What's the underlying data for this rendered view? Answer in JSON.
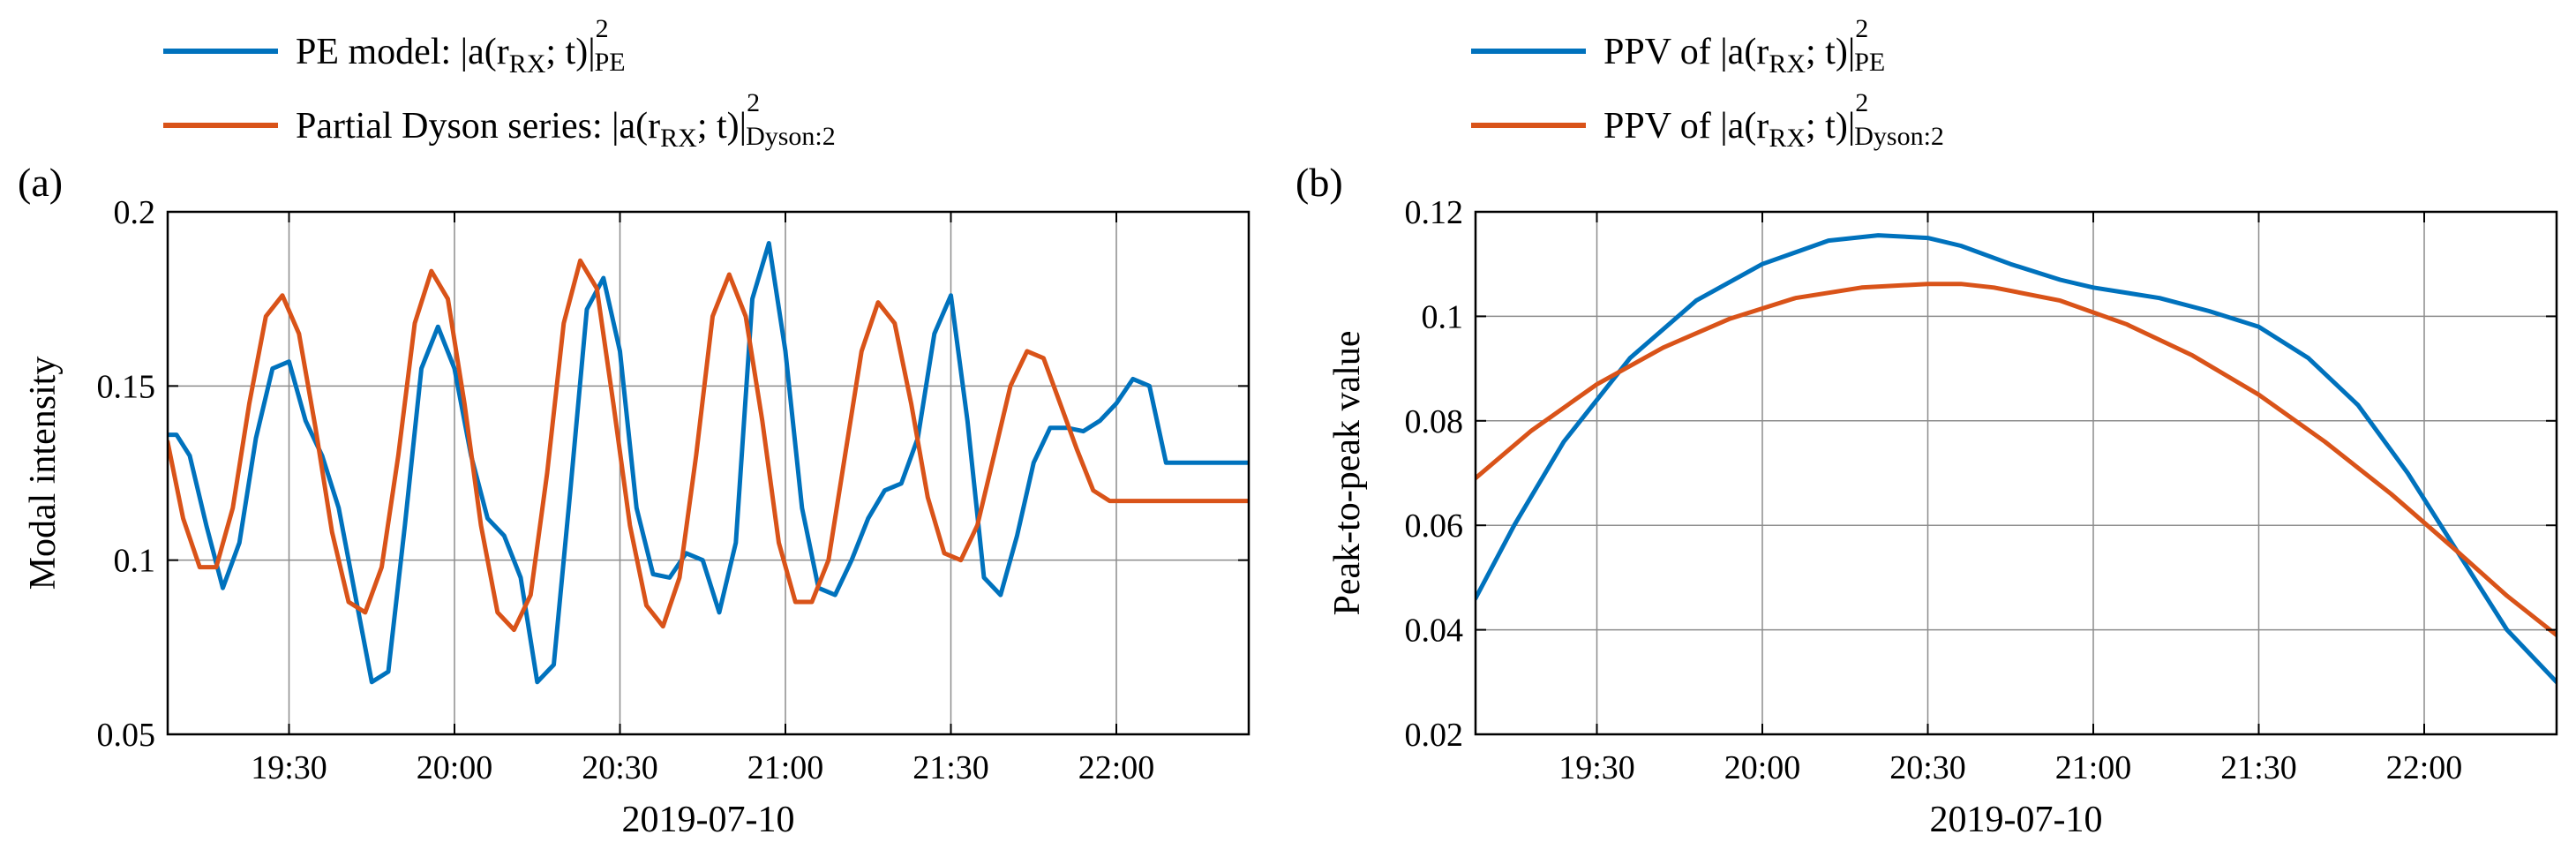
{
  "chart_data": [
    {
      "type": "line",
      "panel_label": "(a)",
      "xlabel": "2019-07-10",
      "ylabel": "Modal intensity",
      "xlim": [
        19.1333,
        22.4
      ],
      "ylim": [
        0.05,
        0.2
      ],
      "grid": true,
      "legend_position": "top-left",
      "x_ticks": [
        19.5,
        20.0,
        20.5,
        21.0,
        21.5,
        22.0
      ],
      "x_tick_labels": [
        "19:30",
        "20:00",
        "20:30",
        "21:00",
        "21:30",
        "22:00"
      ],
      "y_ticks": [
        0.05,
        0.1,
        0.15,
        0.2
      ],
      "y_tick_labels": [
        "0.05",
        "0.1",
        "0.15",
        "0.2"
      ],
      "series": [
        {
          "name": "PE model",
          "legend_main": "PE model: |a(r",
          "legend_sub": "RX",
          "legend_mid": "; t)|",
          "legend_sup": "2",
          "legend_subscript": "PE",
          "color": "#0072BD",
          "x": [
            19.133,
            19.16,
            19.2,
            19.25,
            19.3,
            19.35,
            19.4,
            19.45,
            19.5,
            19.55,
            19.6,
            19.65,
            19.7,
            19.75,
            19.8,
            19.85,
            19.9,
            19.95,
            20.0,
            20.05,
            20.1,
            20.15,
            20.2,
            20.25,
            20.3,
            20.35,
            20.4,
            20.45,
            20.5,
            20.55,
            20.6,
            20.65,
            20.7,
            20.75,
            20.8,
            20.85,
            20.9,
            20.95,
            21.0,
            21.05,
            21.1,
            21.15,
            21.2,
            21.25,
            21.3,
            21.35,
            21.4,
            21.45,
            21.5,
            21.55,
            21.6,
            21.65,
            21.7,
            21.75,
            21.8,
            21.85,
            21.9,
            21.95,
            22.0,
            22.05,
            22.1,
            22.15,
            22.2,
            22.25,
            22.3,
            22.35,
            22.4
          ],
          "values": [
            0.136,
            0.136,
            0.13,
            0.11,
            0.092,
            0.105,
            0.135,
            0.155,
            0.157,
            0.14,
            0.13,
            0.115,
            0.09,
            0.065,
            0.068,
            0.11,
            0.155,
            0.167,
            0.155,
            0.13,
            0.112,
            0.107,
            0.095,
            0.065,
            0.07,
            0.12,
            0.172,
            0.181,
            0.16,
            0.115,
            0.096,
            0.095,
            0.102,
            0.1,
            0.085,
            0.105,
            0.175,
            0.191,
            0.16,
            0.115,
            0.092,
            0.09,
            0.1,
            0.112,
            0.12,
            0.122,
            0.135,
            0.165,
            0.176,
            0.14,
            0.095,
            0.09,
            0.107,
            0.128,
            0.138,
            0.138,
            0.137,
            0.14,
            0.145,
            0.152,
            0.15,
            0.128,
            0.128,
            0.128,
            0.128,
            0.128,
            0.128
          ]
        },
        {
          "name": "Partial Dyson series",
          "legend_main": "Partial Dyson series: |a(r",
          "legend_sub": "RX",
          "legend_mid": "; t)|",
          "legend_sup": "2",
          "legend_subscript": "Dyson:2",
          "color": "#D95319",
          "x": [
            19.133,
            19.18,
            19.23,
            19.28,
            19.33,
            19.38,
            19.43,
            19.48,
            19.53,
            19.58,
            19.63,
            19.68,
            19.73,
            19.78,
            19.83,
            19.88,
            19.93,
            19.98,
            20.03,
            20.08,
            20.13,
            20.18,
            20.23,
            20.28,
            20.33,
            20.38,
            20.43,
            20.48,
            20.53,
            20.58,
            20.63,
            20.68,
            20.73,
            20.78,
            20.83,
            20.88,
            20.93,
            20.98,
            21.03,
            21.08,
            21.13,
            21.18,
            21.23,
            21.28,
            21.33,
            21.38,
            21.43,
            21.48,
            21.53,
            21.58,
            21.63,
            21.68,
            21.73,
            21.78,
            21.83,
            21.88,
            21.93,
            21.98,
            22.03,
            22.08,
            22.13,
            22.18,
            22.23,
            22.28,
            22.33,
            22.4
          ],
          "values": [
            0.134,
            0.112,
            0.098,
            0.098,
            0.115,
            0.145,
            0.17,
            0.176,
            0.165,
            0.138,
            0.108,
            0.088,
            0.085,
            0.098,
            0.13,
            0.168,
            0.183,
            0.175,
            0.145,
            0.11,
            0.085,
            0.08,
            0.09,
            0.125,
            0.168,
            0.186,
            0.178,
            0.145,
            0.11,
            0.087,
            0.081,
            0.095,
            0.13,
            0.17,
            0.182,
            0.17,
            0.14,
            0.105,
            0.088,
            0.088,
            0.1,
            0.13,
            0.16,
            0.174,
            0.168,
            0.145,
            0.118,
            0.102,
            0.1,
            0.11,
            0.13,
            0.15,
            0.16,
            0.158,
            0.145,
            0.132,
            0.12,
            0.117,
            0.117,
            0.117,
            0.117,
            0.117,
            0.117,
            0.117,
            0.117,
            0.117
          ]
        }
      ]
    },
    {
      "type": "line",
      "panel_label": "(b)",
      "xlabel": "2019-07-10",
      "ylabel": "Peak-to-peak value",
      "xlim": [
        19.1333,
        22.4
      ],
      "ylim": [
        0.02,
        0.12
      ],
      "grid": true,
      "legend_position": "top-left",
      "x_ticks": [
        19.5,
        20.0,
        20.5,
        21.0,
        21.5,
        22.0
      ],
      "x_tick_labels": [
        "19:30",
        "20:00",
        "20:30",
        "21:00",
        "21:30",
        "22:00"
      ],
      "y_ticks": [
        0.02,
        0.04,
        0.06,
        0.08,
        0.1,
        0.12
      ],
      "y_tick_labels": [
        "0.02",
        "0.04",
        "0.06",
        "0.08",
        "0.1",
        "0.12"
      ],
      "series": [
        {
          "name": "PPV of PE",
          "legend_main": "PPV of |a(r",
          "legend_sub": "RX",
          "legend_mid": "; t)|",
          "legend_sup": "2",
          "legend_subscript": "PE",
          "color": "#0072BD",
          "x": [
            19.133,
            19.25,
            19.4,
            19.6,
            19.8,
            20.0,
            20.2,
            20.35,
            20.5,
            20.6,
            20.75,
            20.9,
            21.0,
            21.2,
            21.35,
            21.5,
            21.65,
            21.8,
            21.95,
            22.1,
            22.25,
            22.4
          ],
          "values": [
            0.046,
            0.06,
            0.076,
            0.092,
            0.103,
            0.11,
            0.1145,
            0.1155,
            0.115,
            0.1135,
            0.11,
            0.107,
            0.1055,
            0.1035,
            0.101,
            0.098,
            0.092,
            0.083,
            0.07,
            0.055,
            0.04,
            0.03
          ]
        },
        {
          "name": "PPV of Dyson:2",
          "legend_main": "PPV of |a(r",
          "legend_sub": "RX",
          "legend_mid": "; t)|",
          "legend_sup": "2",
          "legend_subscript": "Dyson:2",
          "color": "#D95319",
          "x": [
            19.133,
            19.3,
            19.5,
            19.7,
            19.9,
            20.1,
            20.3,
            20.5,
            20.6,
            20.7,
            20.9,
            21.1,
            21.3,
            21.5,
            21.7,
            21.9,
            22.1,
            22.25,
            22.4
          ],
          "values": [
            0.069,
            0.078,
            0.087,
            0.094,
            0.0995,
            0.1035,
            0.1055,
            0.1062,
            0.1062,
            0.1055,
            0.103,
            0.0985,
            0.0925,
            0.085,
            0.076,
            0.066,
            0.055,
            0.0465,
            0.039
          ]
        }
      ]
    }
  ]
}
